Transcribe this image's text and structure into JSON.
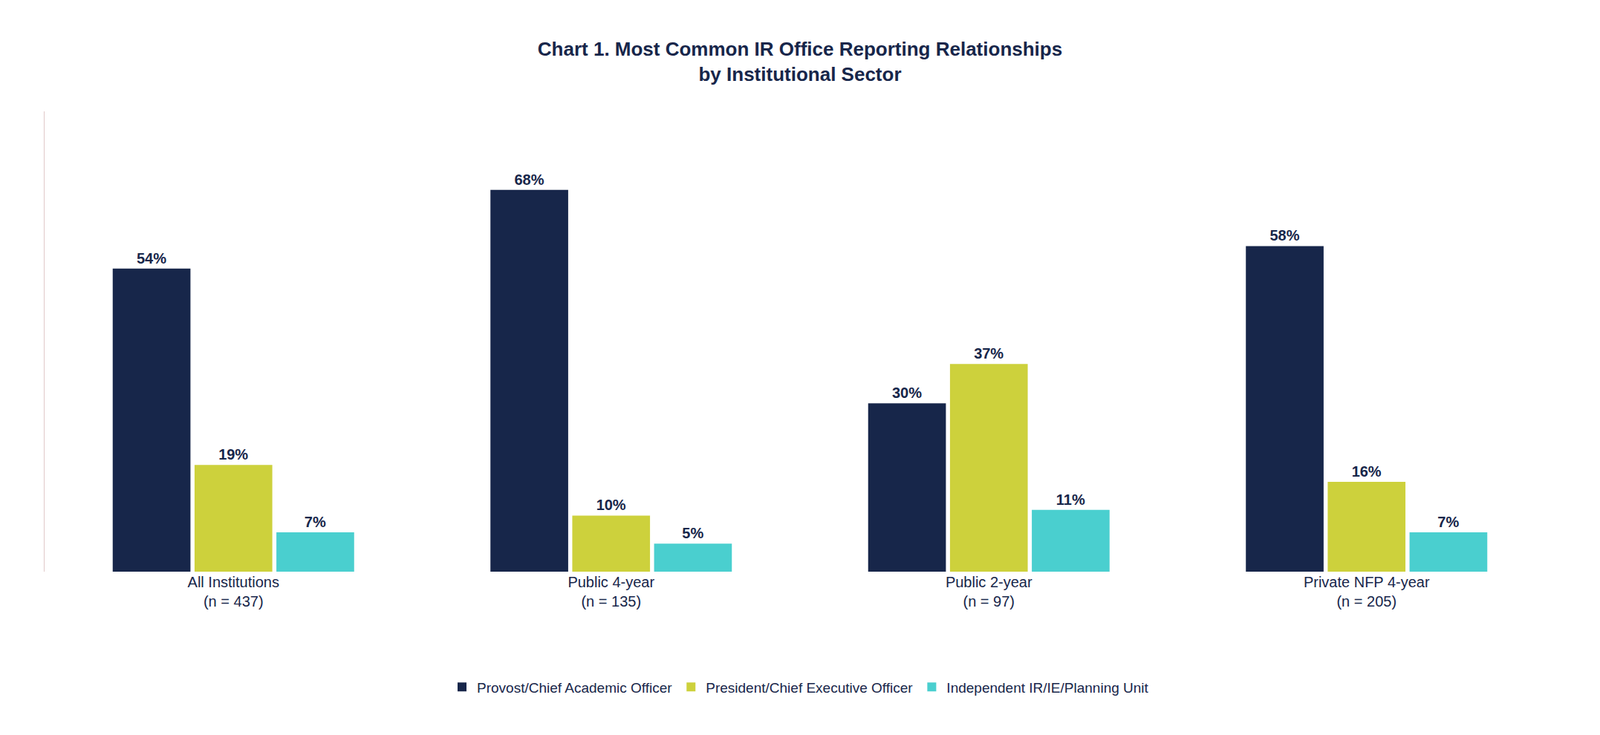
{
  "chart_data": {
    "type": "bar",
    "title": "Chart 1. Most Common IR Office Reporting Relationships\nby Institutional Sector",
    "categories": [
      "All Institutions\n(n = 437)",
      "Public 4-year\n(n = 135)",
      "Public 2-year\n(n = 97)",
      "Private NFP 4-year\n(n = 205)"
    ],
    "series": [
      {
        "name": "Provost/Chief Academic Officer",
        "color": "#17264a",
        "values": [
          54,
          68,
          30,
          58
        ],
        "value_labels": [
          "54%",
          "68%",
          "30%",
          "58%"
        ]
      },
      {
        "name": "President/Chief Executive Officer",
        "color": "#cdd13c",
        "values": [
          19,
          10,
          37,
          16
        ],
        "value_labels": [
          "19%",
          "10%",
          "37%",
          "16%"
        ]
      },
      {
        "name": "Independent IR/IE/Planning Unit",
        "color": "#4acfcf",
        "values": [
          7,
          5,
          11,
          7
        ],
        "value_labels": [
          "7%",
          "5%",
          "11%",
          "7%"
        ]
      }
    ],
    "ylim": [
      0,
      82
    ],
    "grid": false,
    "legend": "bottom",
    "data_labels": true,
    "tick_labels": "x"
  }
}
